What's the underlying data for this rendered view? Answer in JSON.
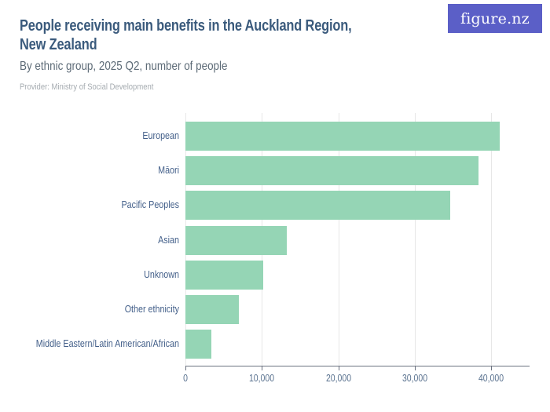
{
  "header": {
    "title_line1": "People receiving main benefits in the Auckland Region,",
    "title_line2": "New Zealand",
    "subtitle": "By ethnic group, 2025 Q2, number of people",
    "provider": "Provider: Ministry of Social Development",
    "logo_text": "figure.nz"
  },
  "colors": {
    "bar": "#95d5b5",
    "title_text": "#3a5a7c",
    "subtitle_text": "#5d6b77",
    "provider_text": "#a6acb1",
    "category_label": "#44608a",
    "tick_label": "#5b7390",
    "axis_line": "#6b7280",
    "gridline": "#e7e7e7",
    "logo_background": "#5b5fc7",
    "logo_text_color": "#ffffff"
  },
  "chart_data": {
    "type": "bar",
    "orientation": "horizontal",
    "title": "People receiving main benefits in the Auckland Region, New Zealand",
    "subtitle": "By ethnic group, 2025 Q2, number of people",
    "provider": "Ministry of Social Development",
    "categories": [
      "European",
      "Māori",
      "Pacific Peoples",
      "Asian",
      "Unknown",
      "Other ethnicity",
      "Middle Eastern/Latin American/African"
    ],
    "values": [
      41100,
      38300,
      34600,
      13250,
      10200,
      6950,
      3350
    ],
    "xlabel": "",
    "ylabel": "",
    "xlim": [
      0,
      45000
    ],
    "x_ticks": [
      0,
      10000,
      20000,
      30000,
      40000
    ],
    "x_tick_labels": [
      "0",
      "10,000",
      "20,000",
      "30,000",
      "40,000"
    ],
    "grid": "vertical",
    "legend": "none"
  }
}
